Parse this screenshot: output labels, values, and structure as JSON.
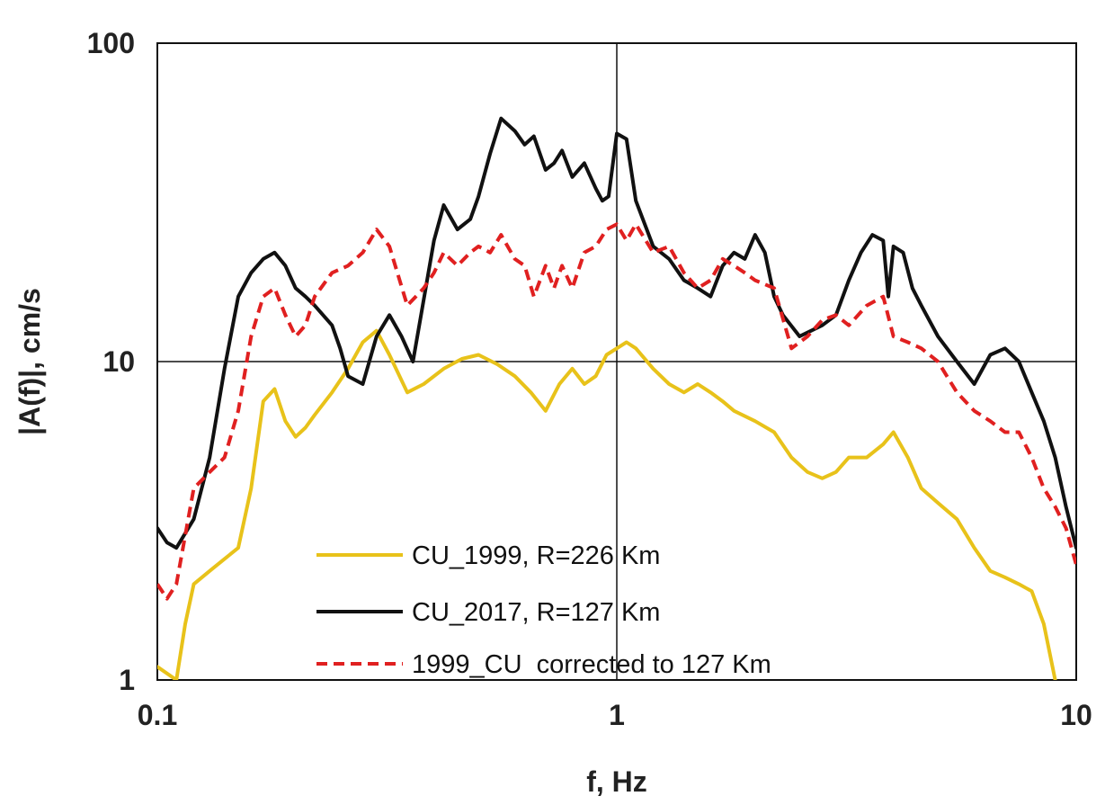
{
  "chart_data": {
    "type": "line",
    "xlabel": "f, Hz",
    "ylabel": "|A(f)|, cm/s",
    "x_scale": "log",
    "y_scale": "log",
    "xlim": [
      0.1,
      10
    ],
    "ylim": [
      1,
      100
    ],
    "x_ticks": [
      {
        "value": 0.1,
        "label": "0.1"
      },
      {
        "value": 1,
        "label": "1"
      },
      {
        "value": 10,
        "label": "10"
      }
    ],
    "y_ticks": [
      {
        "value": 1,
        "label": "1"
      },
      {
        "value": 10,
        "label": "10"
      },
      {
        "value": 100,
        "label": "100"
      }
    ],
    "grid": true,
    "legend_position": "bottom-left",
    "series": [
      {
        "name": "CU_1999, R=226 Km",
        "color": "#E8C21A",
        "style": "solid",
        "x": [
          0.1,
          0.11,
          0.115,
          0.12,
          0.13,
          0.14,
          0.15,
          0.16,
          0.17,
          0.18,
          0.19,
          0.2,
          0.21,
          0.22,
          0.24,
          0.26,
          0.28,
          0.3,
          0.32,
          0.35,
          0.38,
          0.42,
          0.46,
          0.5,
          0.55,
          0.6,
          0.65,
          0.7,
          0.75,
          0.8,
          0.85,
          0.9,
          0.95,
          1.0,
          1.05,
          1.1,
          1.2,
          1.3,
          1.4,
          1.5,
          1.6,
          1.7,
          1.8,
          2.0,
          2.2,
          2.4,
          2.6,
          2.8,
          3.0,
          3.2,
          3.5,
          3.8,
          4.0,
          4.3,
          4.6,
          5.0,
          5.5,
          6.0,
          6.5,
          7.0,
          7.5,
          8.0,
          8.5,
          9.0
        ],
        "y": [
          1.1,
          0.95,
          1.5,
          2.0,
          2.2,
          2.4,
          2.6,
          4.0,
          7.5,
          8.2,
          6.5,
          5.8,
          6.2,
          6.8,
          8.0,
          9.5,
          11.5,
          12.5,
          10.5,
          8.0,
          8.5,
          9.5,
          10.2,
          10.5,
          9.8,
          9.0,
          8.0,
          7.0,
          8.5,
          9.5,
          8.5,
          9.0,
          10.5,
          11.0,
          11.5,
          11.0,
          9.5,
          8.5,
          8.0,
          8.5,
          8.0,
          7.5,
          7.0,
          6.5,
          6.0,
          5.0,
          4.5,
          4.3,
          4.5,
          5.0,
          5.0,
          5.5,
          6.0,
          5.0,
          4.0,
          3.6,
          3.2,
          2.6,
          2.2,
          2.1,
          2.0,
          1.9,
          1.5,
          1.0
        ]
      },
      {
        "name": "CU_2017, R=127 Km",
        "color": "#111111",
        "style": "solid",
        "x": [
          0.1,
          0.105,
          0.11,
          0.12,
          0.13,
          0.14,
          0.15,
          0.16,
          0.17,
          0.18,
          0.19,
          0.2,
          0.21,
          0.22,
          0.24,
          0.25,
          0.26,
          0.28,
          0.3,
          0.32,
          0.34,
          0.36,
          0.4,
          0.42,
          0.45,
          0.48,
          0.5,
          0.53,
          0.56,
          0.6,
          0.63,
          0.66,
          0.7,
          0.73,
          0.76,
          0.8,
          0.85,
          0.9,
          0.93,
          0.96,
          1.0,
          1.05,
          1.1,
          1.2,
          1.3,
          1.4,
          1.5,
          1.6,
          1.7,
          1.8,
          1.9,
          2.0,
          2.1,
          2.2,
          2.3,
          2.5,
          2.8,
          3.0,
          3.2,
          3.4,
          3.6,
          3.8,
          3.9,
          4.0,
          4.2,
          4.4,
          4.6,
          5.0,
          5.5,
          6.0,
          6.5,
          7.0,
          7.5,
          8.0,
          8.5,
          9.0,
          9.5,
          10.0
        ],
        "y": [
          3.0,
          2.7,
          2.6,
          3.2,
          5.0,
          9.5,
          16.0,
          19.0,
          21.0,
          22.0,
          20.0,
          17.0,
          16.0,
          15.0,
          13.0,
          11.0,
          9.0,
          8.5,
          12.0,
          14.0,
          12.0,
          10.0,
          24.0,
          31.0,
          26.0,
          28.0,
          33.0,
          45.0,
          58.0,
          53.0,
          48.0,
          51.0,
          40.0,
          42.0,
          46.0,
          38.0,
          42.0,
          35.0,
          32.0,
          33.0,
          52.0,
          50.0,
          32.0,
          23.0,
          21.0,
          18.0,
          17.0,
          16.0,
          20.0,
          22.0,
          21.0,
          25.0,
          22.0,
          16.0,
          14.0,
          12.0,
          13.0,
          14.0,
          18.0,
          22.0,
          25.0,
          24.0,
          16.0,
          23.0,
          22.0,
          17.0,
          15.0,
          12.0,
          10.0,
          8.5,
          10.5,
          11.0,
          10.0,
          8.0,
          6.5,
          5.0,
          3.5,
          2.6
        ]
      },
      {
        "name": "1999_CU  corrected to 127 Km",
        "color": "#E02020",
        "style": "dashed",
        "x": [
          0.1,
          0.105,
          0.11,
          0.12,
          0.13,
          0.14,
          0.15,
          0.16,
          0.17,
          0.18,
          0.19,
          0.2,
          0.21,
          0.22,
          0.24,
          0.26,
          0.28,
          0.3,
          0.32,
          0.35,
          0.38,
          0.4,
          0.42,
          0.45,
          0.48,
          0.5,
          0.53,
          0.56,
          0.6,
          0.63,
          0.66,
          0.7,
          0.73,
          0.76,
          0.8,
          0.85,
          0.9,
          0.95,
          1.0,
          1.05,
          1.1,
          1.2,
          1.3,
          1.4,
          1.5,
          1.6,
          1.7,
          1.8,
          1.9,
          2.0,
          2.2,
          2.4,
          2.6,
          2.8,
          3.0,
          3.2,
          3.5,
          3.8,
          4.0,
          4.3,
          4.6,
          5.0,
          5.5,
          6.0,
          6.5,
          7.0,
          7.5,
          8.0,
          8.5,
          9.0,
          9.5,
          10.0
        ],
        "y": [
          2.0,
          1.8,
          2.0,
          4.0,
          4.5,
          5.0,
          7.0,
          12.0,
          16.0,
          17.0,
          14.0,
          12.0,
          13.0,
          16.0,
          19.0,
          20.0,
          22.0,
          26.0,
          23.0,
          15.0,
          17.0,
          19.0,
          22.0,
          20.0,
          22.0,
          23.0,
          22.0,
          25.0,
          21.0,
          20.0,
          16.0,
          20.0,
          17.0,
          20.0,
          17.0,
          22.0,
          23.0,
          26.0,
          27.0,
          24.0,
          27.0,
          22.0,
          23.0,
          19.0,
          17.0,
          18.0,
          21.0,
          20.0,
          19.0,
          18.0,
          17.0,
          11.0,
          12.0,
          13.5,
          14.0,
          13.0,
          15.0,
          16.0,
          12.0,
          11.5,
          11.0,
          10.0,
          8.0,
          7.0,
          6.5,
          6.0,
          6.0,
          5.0,
          4.0,
          3.5,
          3.0,
          2.3
        ]
      }
    ]
  }
}
